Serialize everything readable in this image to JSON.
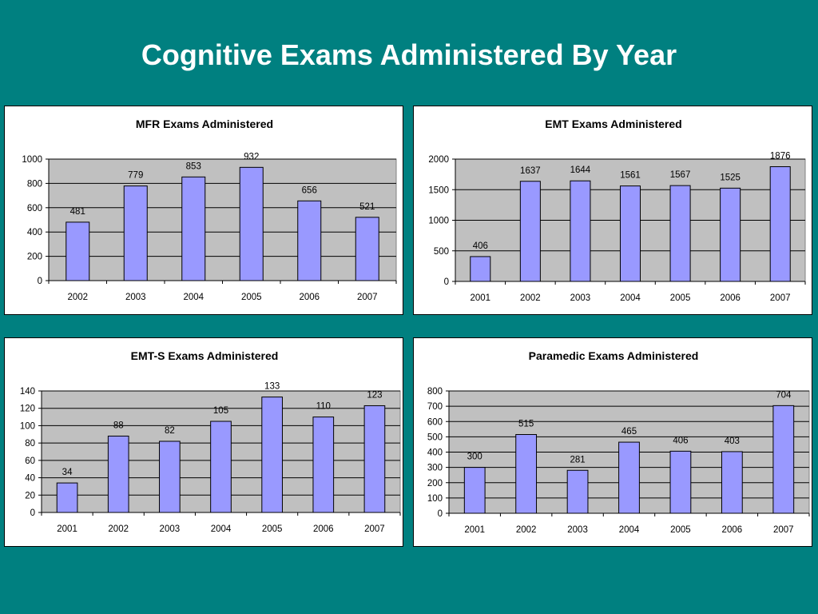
{
  "slide": {
    "title": "Cognitive Exams Administered By Year"
  },
  "colors": {
    "background": "#008080",
    "plot_area": "#c0c0c0",
    "bar_fill": "#9999ff",
    "bar_stroke": "#000000"
  },
  "chart_data": [
    {
      "type": "bar",
      "title": "MFR Exams Administered",
      "categories": [
        "2002",
        "2003",
        "2004",
        "2005",
        "2006",
        "2007"
      ],
      "values": [
        481,
        779,
        853,
        932,
        656,
        521
      ],
      "ylim": [
        0,
        1000
      ],
      "yticks": [
        "0",
        "200",
        "400",
        "600",
        "800",
        "1000"
      ],
      "grid": true,
      "legend": "none"
    },
    {
      "type": "bar",
      "title": "EMT Exams Administered",
      "categories": [
        "2001",
        "2002",
        "2003",
        "2004",
        "2005",
        "2006",
        "2007"
      ],
      "values": [
        406,
        1637,
        1644,
        1561,
        1567,
        1525,
        1876
      ],
      "ylim": [
        0,
        2000
      ],
      "yticks": [
        "0",
        "500",
        "1000",
        "1500",
        "2000"
      ],
      "grid": true,
      "legend": "none"
    },
    {
      "type": "bar",
      "title": "EMT-S Exams Administered",
      "categories": [
        "2001",
        "2002",
        "2003",
        "2004",
        "2005",
        "2006",
        "2007"
      ],
      "values": [
        34,
        88,
        82,
        105,
        133,
        110,
        123
      ],
      "ylim": [
        0,
        140
      ],
      "yticks": [
        "0",
        "20",
        "40",
        "60",
        "80",
        "100",
        "120",
        "140"
      ],
      "grid": true,
      "legend": "none"
    },
    {
      "type": "bar",
      "title": "Paramedic Exams Administered",
      "categories": [
        "2001",
        "2002",
        "2003",
        "2004",
        "2005",
        "2006",
        "2007"
      ],
      "values": [
        300,
        515,
        281,
        465,
        406,
        403,
        704
      ],
      "ylim": [
        0,
        800
      ],
      "yticks": [
        "0",
        "100",
        "200",
        "300",
        "400",
        "500",
        "600",
        "700",
        "800"
      ],
      "grid": true,
      "legend": "none"
    }
  ]
}
